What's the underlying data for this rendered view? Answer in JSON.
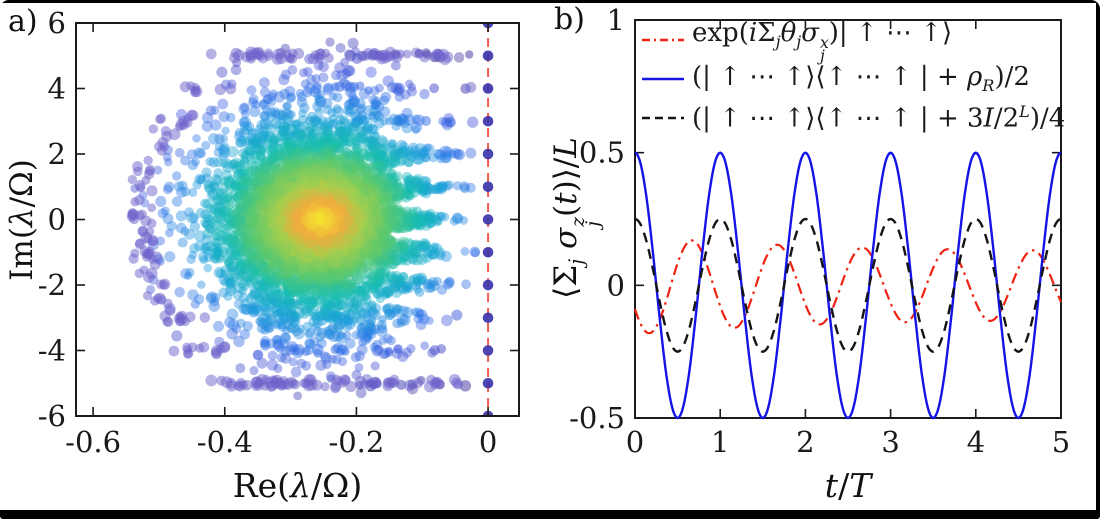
{
  "figure": {
    "panel_a_tag": "a)",
    "panel_b_tag": "b)"
  },
  "chart_data": [
    {
      "id": "a",
      "type": "scatter",
      "description": "Complex Liouvillian eigenvalue spectrum: density-colored cloud in left half plane plus purely imaginary eigenvalues on dashed line Re=0",
      "xlabel_parts": [
        {
          "t": "Re("
        },
        {
          "t": "λ",
          "i": true
        },
        {
          "t": "/Ω)"
        }
      ],
      "ylabel_parts": [
        {
          "t": "Im("
        },
        {
          "t": "λ",
          "i": true
        },
        {
          "t": "/Ω)"
        }
      ],
      "xlim": [
        -0.626,
        0.047
      ],
      "ylim": [
        -6,
        6
      ],
      "xticks": [
        {
          "v": -0.6,
          "l": "-0.6"
        },
        {
          "v": -0.4,
          "l": "-0.4"
        },
        {
          "v": -0.2,
          "l": "-0.2"
        },
        {
          "v": 0,
          "l": "0"
        }
      ],
      "yticks": [
        {
          "v": -6,
          "l": "-6"
        },
        {
          "v": -4,
          "l": "-4"
        },
        {
          "v": -2,
          "l": "-2"
        },
        {
          "v": 0,
          "l": "0"
        },
        {
          "v": 2,
          "l": "2"
        },
        {
          "v": 4,
          "l": "4"
        },
        {
          "v": 6,
          "l": "6"
        }
      ],
      "imag_axis_line": {
        "re": 0,
        "style": "dashed",
        "color": "#f0544c"
      },
      "axis_dots": {
        "re": 0,
        "im_values": [
          -6,
          -5,
          -4,
          -3,
          -2,
          -1,
          0,
          1,
          2,
          3,
          4,
          5,
          6
        ],
        "color": "#3c34ad"
      },
      "density_cloud": {
        "center": [
          -0.255,
          0
        ],
        "sigma": [
          0.082,
          1.75
        ],
        "envelope": {
          "center": [
            -0.21,
            0
          ],
          "rx": 0.34,
          "ry": 5.45
        },
        "pinch_start": -0.17,
        "n_points": 4200,
        "n_core": 700,
        "colormap": "parula",
        "colormap_stops": [
          [
            0,
            "#3b2f9d"
          ],
          [
            0.18,
            "#4450d8"
          ],
          [
            0.33,
            "#2f74e8"
          ],
          [
            0.47,
            "#1ba0d9"
          ],
          [
            0.6,
            "#16bcb2"
          ],
          [
            0.72,
            "#5fc96a"
          ],
          [
            0.82,
            "#a8cf4d"
          ],
          [
            0.9,
            "#f0ab3e"
          ],
          [
            1,
            "#f6ee2b"
          ]
        ]
      },
      "streak_rows": {
        "im_values": [
          -5,
          -4,
          -3,
          -2,
          -1,
          0,
          1,
          2,
          3,
          4,
          5
        ],
        "max_reach": 0.4
      },
      "halo": {
        "color": "#6e64cc",
        "n_points": 240
      }
    },
    {
      "id": "b",
      "type": "line",
      "xlabel_parts": [
        {
          "t": "t",
          "i": true
        },
        {
          "t": "/"
        },
        {
          "t": "T",
          "i": true
        }
      ],
      "ylabel_parts": [
        {
          "t": "⟨Σ"
        },
        {
          "sub": "j",
          "i": true
        },
        {
          "t": " "
        },
        {
          "t": "σ",
          "i": true
        },
        {
          "sup": "z",
          "sub": "j",
          "i": true
        },
        {
          "t": "("
        },
        {
          "t": "t",
          "i": true
        },
        {
          "t": ")⟩/"
        },
        {
          "t": "L",
          "i": true
        }
      ],
      "xlim": [
        0,
        5
      ],
      "ylim": [
        -0.5,
        1
      ],
      "xticks": [
        {
          "v": 0,
          "l": "0"
        },
        {
          "v": 1,
          "l": "1"
        },
        {
          "v": 2,
          "l": "2"
        },
        {
          "v": 3,
          "l": "3"
        },
        {
          "v": 4,
          "l": "4"
        },
        {
          "v": 5,
          "l": "5"
        }
      ],
      "yticks": [
        {
          "v": -0.5,
          "l": "-0.5"
        },
        {
          "v": 0,
          "l": "0"
        },
        {
          "v": 0.5,
          "l": "0.5"
        },
        {
          "v": 1,
          "l": "1"
        }
      ],
      "legend_position": "top-inside",
      "series": [
        {
          "name": "rotated-product-state",
          "color": "#ee2211",
          "style": "dashdot",
          "line_width": 2.2,
          "model": {
            "kind": "cos",
            "sign": -1,
            "amp_start": 0.185,
            "amp_end": 0.125,
            "decay_tau": 2.2,
            "period": 1,
            "phase": 0.17
          },
          "label_parts": [
            {
              "t": "exp("
            },
            {
              "t": "i",
              "i": true
            },
            {
              "t": "Σ"
            },
            {
              "sub": "j",
              "i": true
            },
            {
              "t": "θ",
              "i": true
            },
            {
              "sub": "j",
              "i": true
            },
            {
              "t": "σ",
              "i": true
            },
            {
              "sup": "x",
              "sub": "j",
              "i": true
            },
            {
              "t": ")| ↑ ⋯ ↑⟩"
            }
          ]
        },
        {
          "name": "mixture-with-random-state",
          "color": "#1414e6",
          "style": "solid",
          "line_width": 2.4,
          "model": {
            "kind": "cos",
            "sign": 1,
            "amp_start": 0.5,
            "amp_end": 0.5,
            "decay_tau": 1,
            "period": 1,
            "phase": 0
          },
          "label_parts": [
            {
              "t": "(| ↑ ⋯ ↑⟩⟨↑ ⋯ ↑ | + "
            },
            {
              "t": "ρ",
              "i": true
            },
            {
              "sub": "R",
              "i": true
            },
            {
              "t": ")/2"
            }
          ]
        },
        {
          "name": "mixture-with-identity",
          "color": "#151515",
          "style": "dashed",
          "line_width": 2.4,
          "model": {
            "kind": "cos",
            "sign": 1,
            "amp_start": 0.25,
            "amp_end": 0.25,
            "decay_tau": 1,
            "period": 1,
            "phase": 0
          },
          "label_parts": [
            {
              "t": "(| ↑ ⋯ ↑⟩⟨↑ ⋯ ↑ | + 3"
            },
            {
              "t": "I",
              "i": true
            },
            {
              "t": "/2"
            },
            {
              "sup": "L",
              "i": true
            },
            {
              "t": ")/4"
            }
          ]
        }
      ]
    }
  ]
}
